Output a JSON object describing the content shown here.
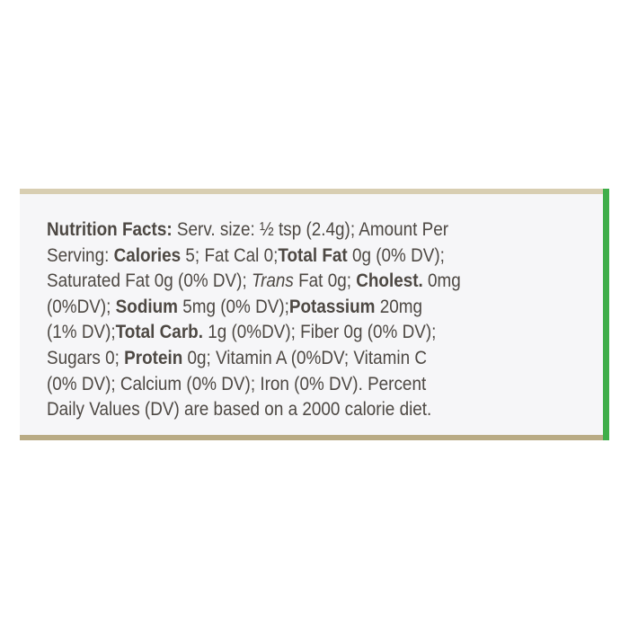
{
  "label": {
    "lines": [
      [
        {
          "t": "Nutrition Facts:",
          "s": "b"
        },
        {
          "t": " Serv. size: ½ tsp (2.4g); Amount Per",
          "s": ""
        }
      ],
      [
        {
          "t": "Serving: ",
          "s": ""
        },
        {
          "t": "Calories",
          "s": "b"
        },
        {
          "t": " 5; Fat Cal 0;",
          "s": ""
        },
        {
          "t": "Total Fat",
          "s": "b"
        },
        {
          "t": " 0g (0% DV);",
          "s": ""
        }
      ],
      [
        {
          "t": "Saturated Fat 0g (0% DV); ",
          "s": ""
        },
        {
          "t": "Trans",
          "s": "i"
        },
        {
          "t": " Fat 0g; ",
          "s": ""
        },
        {
          "t": "Cholest.",
          "s": "b"
        },
        {
          "t": " 0mg",
          "s": ""
        }
      ],
      [
        {
          "t": "(0%DV); ",
          "s": ""
        },
        {
          "t": "Sodium",
          "s": "b"
        },
        {
          "t": " 5mg (0% DV);",
          "s": ""
        },
        {
          "t": "Potassium",
          "s": "b"
        },
        {
          "t": " 20mg",
          "s": ""
        }
      ],
      [
        {
          "t": "(1% DV);",
          "s": ""
        },
        {
          "t": "Total Carb.",
          "s": "b"
        },
        {
          "t": " 1g (0%DV); Fiber 0g (0% DV);",
          "s": ""
        }
      ],
      [
        {
          "t": "Sugars 0; ",
          "s": ""
        },
        {
          "t": "Protein",
          "s": "b"
        },
        {
          "t": " 0g; Vitamin A (0%DV; Vitamin C",
          "s": ""
        }
      ],
      [
        {
          "t": "(0% DV); Calcium (0% DV); Iron (0% DV). Percent",
          "s": ""
        }
      ],
      [
        {
          "t": "Daily Values (DV) are based on a 2000 calorie diet.",
          "s": ""
        }
      ]
    ]
  },
  "colors": {
    "text": "#4d4843",
    "accent_edge": "#3fae4a",
    "label_bg": "#f6f6f8"
  }
}
